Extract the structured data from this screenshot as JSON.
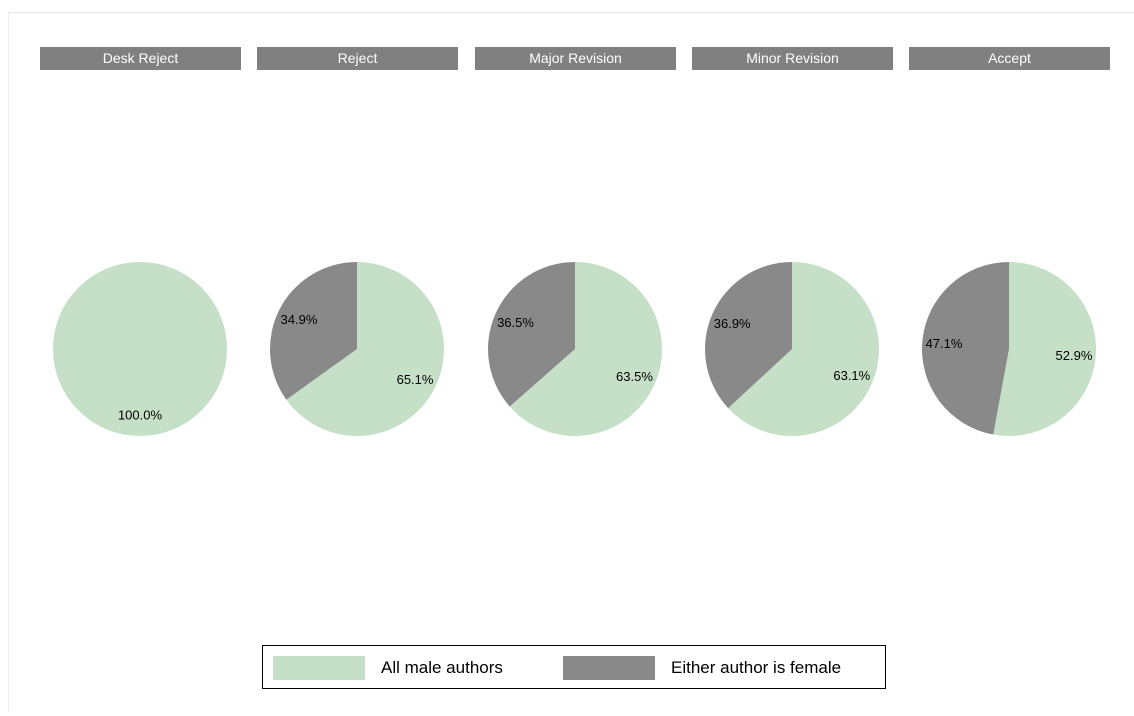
{
  "chart_data": {
    "type": "pie",
    "panels": [
      {
        "title": "Desk Reject",
        "values": [
          100.0,
          0.0
        ]
      },
      {
        "title": "Reject",
        "values": [
          65.1,
          34.9
        ]
      },
      {
        "title": "Major Revision",
        "values": [
          63.5,
          36.5
        ]
      },
      {
        "title": "Minor Revision",
        "values": [
          63.1,
          36.9
        ]
      },
      {
        "title": "Accept",
        "values": [
          52.9,
          47.1
        ]
      }
    ],
    "series": [
      {
        "name": "All male authors",
        "color": "#c5e0c7"
      },
      {
        "name": "Either author is female",
        "color": "#898989"
      }
    ],
    "value_format": "percent-1dp",
    "legend_position": "bottom"
  }
}
